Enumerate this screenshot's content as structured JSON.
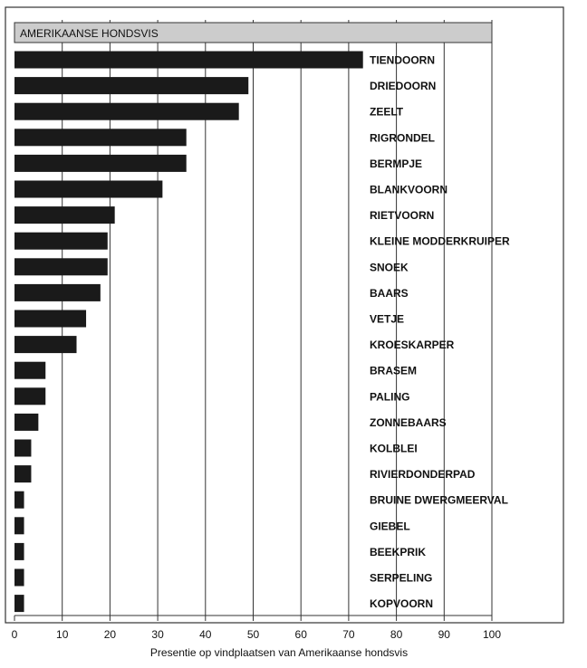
{
  "colors": {
    "bar": "#1a1a1a",
    "header_bar": "#cccccc",
    "frame": "#333333",
    "grid": "#333333",
    "text": "#111111",
    "background": "#ffffff"
  },
  "chart_data": {
    "type": "bar",
    "orientation": "horizontal",
    "title": "AMERIKAANSE HONDSVIS",
    "title_value": 100,
    "xlabel": "Presentie op vindplaatsen van Amerikaanse hondsvis",
    "ylabel": "",
    "xlim": [
      0,
      100
    ],
    "xticks": [
      0,
      10,
      20,
      30,
      40,
      50,
      60,
      70,
      80,
      90,
      100
    ],
    "grid": true,
    "categories": [
      "TIENDOORN",
      "DRIEDOORN",
      "ZEELT",
      "RIGRONDEL",
      "BERMPJE",
      "BLANKVOORN",
      "RIETVOORN",
      "KLEINE MODDERKRUIPER",
      "SNOEK",
      "BAARS",
      "VETJE",
      "KROESKARPER",
      "BRASEM",
      "PALING",
      "ZONNEBAARS",
      "KOLBLEI",
      "RIVIERDONDERPAD",
      "BRUINE DWERGMEERVAL",
      "GIEBEL",
      "BEEKPRIK",
      "SERPELING",
      "KOPVOORN"
    ],
    "values": [
      73,
      49,
      47,
      36,
      36,
      31,
      21,
      19.5,
      19.5,
      18,
      15,
      13,
      6.5,
      6.5,
      5,
      3.5,
      3.5,
      2,
      2,
      2,
      2,
      2
    ]
  }
}
